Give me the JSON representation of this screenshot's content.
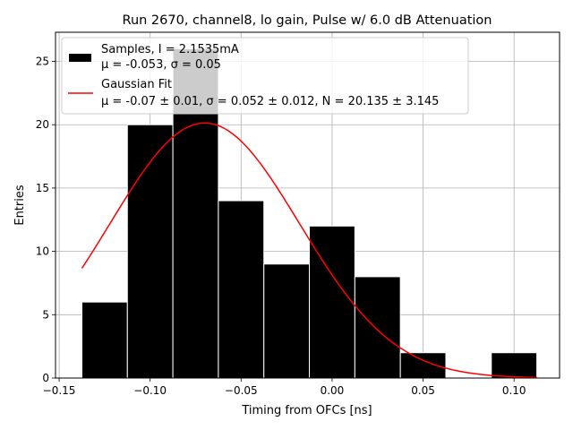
{
  "chart_data": {
    "type": "bar",
    "title": "Run 2670, channel8, lo gain, Pulse w/ 6.0 dB Attenuation",
    "xlabel": "Timing from OFCs [ns]",
    "ylabel": "Entries",
    "xlim": [
      -0.152,
      0.125
    ],
    "ylim": [
      0,
      27.3
    ],
    "grid": true,
    "xticks": [
      -0.15,
      -0.1,
      -0.05,
      0.0,
      0.05,
      0.1
    ],
    "xtick_labels": [
      "−0.15",
      "−0.10",
      "−0.05",
      "0.00",
      "0.05",
      "0.10"
    ],
    "yticks": [
      0,
      5,
      10,
      15,
      20,
      25
    ],
    "ytick_labels": [
      "0",
      "5",
      "10",
      "15",
      "20",
      "25"
    ],
    "histogram": {
      "name": "Samples, I = 2.1535mA",
      "stats_label": "μ = -0.053, σ = 0.05",
      "color": "#000000",
      "edge_color": "#ffffff",
      "bin_edges": [
        -0.1375,
        -0.1125,
        -0.0875,
        -0.0625,
        -0.0375,
        -0.0125,
        0.0125,
        0.0375,
        0.0625,
        0.0875,
        0.1125
      ],
      "counts": [
        6,
        20,
        26,
        14,
        9,
        12,
        8,
        2,
        0,
        2
      ]
    },
    "fit": {
      "name": "Gaussian Fit",
      "params_label": "μ = -0.07 ± 0.01, σ = 0.052 ± 0.012, N = 20.135 ± 3.145",
      "color": "#ff0000",
      "mu": -0.07,
      "sigma": 0.052,
      "N": 20.135,
      "x_range": [
        -0.1375,
        0.1125
      ]
    },
    "legend": {
      "position": "top-left"
    }
  }
}
